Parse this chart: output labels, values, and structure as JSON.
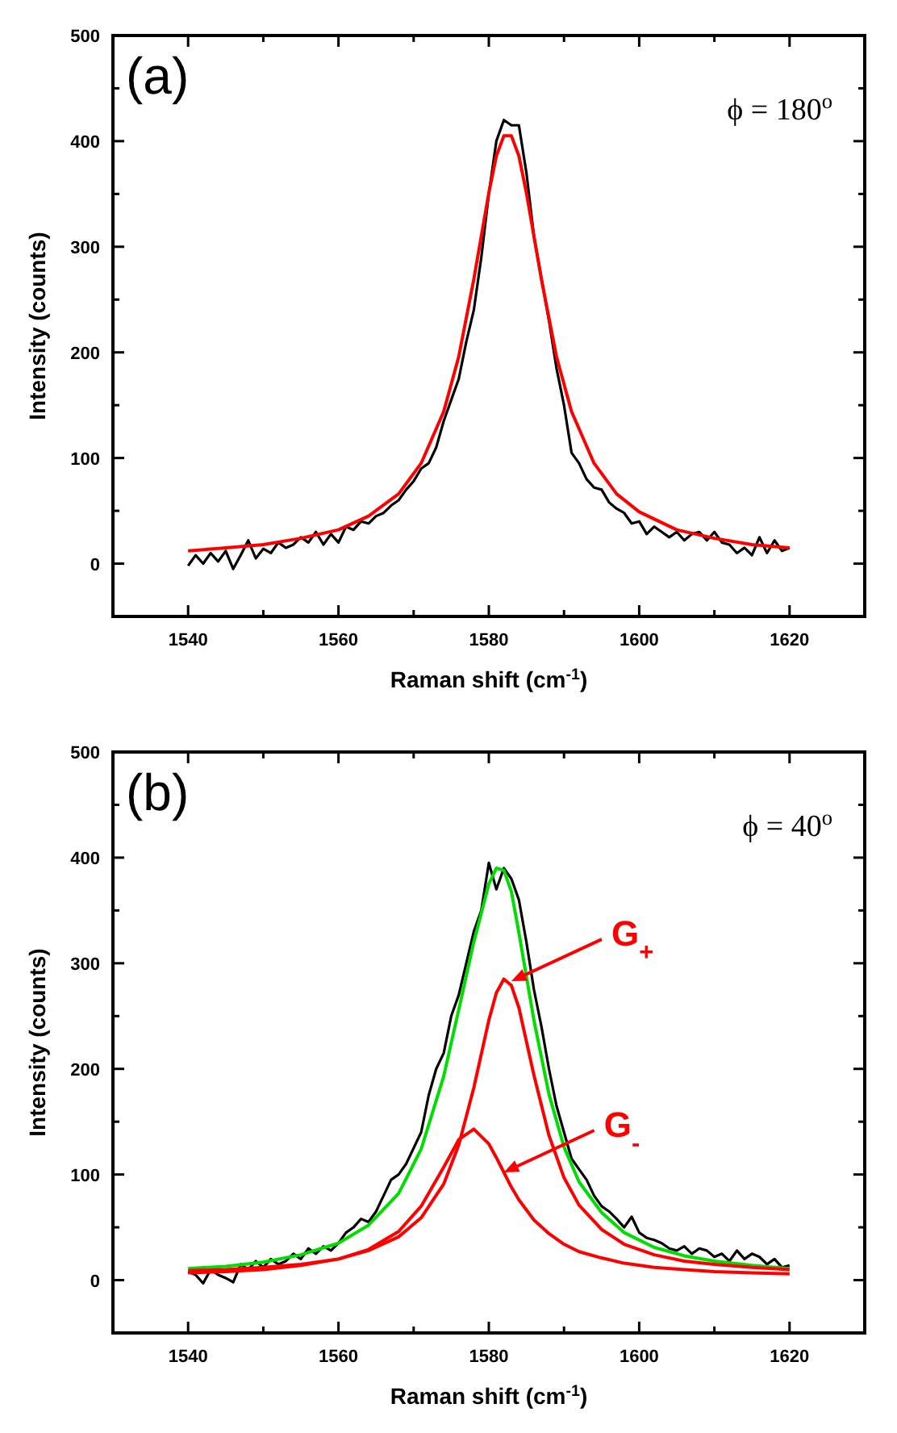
{
  "chart_data": [
    {
      "type": "line",
      "xlabel": "Raman shift (cm$^{-1}$)",
      "ylabel": "Intensity (counts)",
      "annotations": [
        "(a)",
        "ϕ = 180$^{o}$"
      ],
      "xlim": [
        1530,
        1630
      ],
      "ylim": [
        -50,
        500
      ],
      "xticks": [
        1540,
        {
          "value": 1550,
          "label": null
        },
        1560,
        {
          "value": 1570,
          "label": null
        },
        1580,
        {
          "value": 1590,
          "label": null
        },
        1600,
        {
          "value": 1610,
          "label": null
        },
        1620
      ],
      "yticks": [
        0,
        {
          "value": 50,
          "label": null
        },
        100,
        {
          "value": 150,
          "label": null
        },
        200,
        {
          "value": 250,
          "label": null
        },
        300,
        {
          "value": 350,
          "label": null
        },
        400,
        {
          "value": 450,
          "label": null
        },
        500
      ],
      "grid": false,
      "marker": "none",
      "line_style": "solid",
      "x": [
        1540,
        1541,
        1542,
        1543,
        1544,
        1545,
        1546,
        1547,
        1548,
        1549,
        1550,
        1551,
        1552,
        1553,
        1554,
        1555,
        1556,
        1557,
        1558,
        1559,
        1560,
        1561,
        1562,
        1563,
        1564,
        1565,
        1566,
        1567,
        1568,
        1569,
        1570,
        1571,
        1572,
        1573,
        1574,
        1575,
        1576,
        1577,
        1578,
        1579,
        1580,
        1581,
        1582,
        1583,
        1584,
        1585,
        1586,
        1587,
        1588,
        1589,
        1590,
        1591,
        1592,
        1593,
        1594,
        1595,
        1596,
        1597,
        1598,
        1599,
        1600,
        1601,
        1602,
        1603,
        1604,
        1605,
        1606,
        1607,
        1608,
        1609,
        1610,
        1611,
        1612,
        1613,
        1614,
        1615,
        1616,
        1617,
        1618,
        1619,
        1620
      ],
      "series": [
        {
          "color": "#000000",
          "values": [
            -2,
            8,
            0,
            10,
            2,
            12,
            -5,
            8,
            22,
            5,
            14,
            10,
            20,
            15,
            18,
            25,
            20,
            30,
            18,
            28,
            20,
            35,
            32,
            40,
            38,
            45,
            48,
            55,
            60,
            70,
            78,
            90,
            95,
            110,
            135,
            155,
            175,
            210,
            240,
            290,
            350,
            400,
            420,
            415,
            415,
            370,
            310,
            270,
            230,
            185,
            150,
            105,
            95,
            80,
            72,
            70,
            58,
            52,
            48,
            38,
            40,
            28,
            35,
            30,
            25,
            30,
            22,
            28,
            30,
            22,
            30,
            20,
            18,
            10,
            15,
            8,
            25,
            10,
            22,
            12,
            15
          ]
        },
        {
          "color": "#ff0000",
          "x": [
            1540,
            1545,
            1550,
            1555,
            1560,
            1564,
            1568,
            1571,
            1574,
            1576,
            1578,
            1580,
            1581,
            1582,
            1583,
            1584,
            1585,
            1587,
            1589,
            1591,
            1594,
            1597,
            1600,
            1605,
            1610,
            1615,
            1620
          ],
          "values": [
            12,
            15,
            18,
            24,
            32,
            45,
            66,
            95,
            144,
            196,
            269,
            351,
            386,
            405,
            405,
            386,
            351,
            269,
            196,
            144,
            95,
            66,
            49,
            32,
            24,
            18,
            15
          ]
        }
      ]
    },
    {
      "type": "line",
      "xlabel": "Raman shift (cm$^{-1}$)",
      "ylabel": "Intensity (counts)",
      "annotations": [
        "(b)",
        "ϕ = 40$^{o}$",
        {
          "text": "G$_{+}$",
          "x": 1583,
          "y": 283
        },
        {
          "text": "G$_{-}$",
          "x": 1582,
          "y": 102
        }
      ],
      "xlim": [
        1530,
        1630
      ],
      "ylim": [
        -50,
        500
      ],
      "xticks": [
        1540,
        {
          "value": 1550,
          "label": null
        },
        1560,
        {
          "value": 1570,
          "label": null
        },
        1580,
        {
          "value": 1590,
          "label": null
        },
        1600,
        {
          "value": 1610,
          "label": null
        },
        1620
      ],
      "yticks": [
        0,
        {
          "value": 50,
          "label": null
        },
        100,
        {
          "value": 150,
          "label": null
        },
        200,
        {
          "value": 250,
          "label": null
        },
        300,
        {
          "value": 350,
          "label": null
        },
        400,
        {
          "value": 450,
          "label": null
        },
        500
      ],
      "grid": false,
      "marker": "none",
      "line_style": "solid",
      "x": [
        1540,
        1541,
        1542,
        1543,
        1544,
        1545,
        1546,
        1547,
        1548,
        1549,
        1550,
        1551,
        1552,
        1553,
        1554,
        1555,
        1556,
        1557,
        1558,
        1559,
        1560,
        1561,
        1562,
        1563,
        1564,
        1565,
        1566,
        1567,
        1568,
        1569,
        1570,
        1571,
        1572,
        1573,
        1574,
        1575,
        1576,
        1577,
        1578,
        1579,
        1580,
        1581,
        1582,
        1583,
        1584,
        1585,
        1586,
        1587,
        1588,
        1589,
        1590,
        1591,
        1592,
        1593,
        1594,
        1595,
        1596,
        1597,
        1598,
        1599,
        1600,
        1601,
        1602,
        1603,
        1604,
        1605,
        1606,
        1607,
        1608,
        1609,
        1610,
        1611,
        1612,
        1613,
        1614,
        1615,
        1616,
        1617,
        1618,
        1619,
        1620
      ],
      "series": [
        {
          "color": "#000000",
          "values": [
            8,
            5,
            -3,
            10,
            5,
            2,
            -2,
            15,
            10,
            18,
            12,
            20,
            15,
            18,
            25,
            20,
            30,
            25,
            32,
            28,
            35,
            45,
            50,
            58,
            55,
            65,
            80,
            95,
            100,
            110,
            125,
            140,
            175,
            200,
            215,
            250,
            270,
            300,
            330,
            350,
            395,
            370,
            390,
            380,
            360,
            320,
            275,
            240,
            200,
            165,
            140,
            115,
            105,
            95,
            80,
            70,
            65,
            58,
            50,
            60,
            45,
            40,
            38,
            35,
            30,
            28,
            32,
            25,
            30,
            28,
            22,
            25,
            18,
            28,
            20,
            25,
            22,
            15,
            20,
            12,
            14
          ]
        },
        {
          "color": "#00dd00",
          "x": [
            1540,
            1545,
            1550,
            1555,
            1560,
            1564,
            1568,
            1571,
            1574,
            1576,
            1578,
            1580,
            1581,
            1582,
            1583,
            1584,
            1586,
            1588,
            1590,
            1592,
            1595,
            1598,
            1602,
            1606,
            1610,
            1615,
            1620
          ],
          "values": [
            11,
            13,
            17,
            24,
            35,
            52,
            82,
            124,
            193,
            256,
            320,
            375,
            390,
            388,
            368,
            329,
            246,
            176,
            126,
            93,
            64,
            45,
            31,
            23,
            18,
            14,
            11
          ]
        },
        {
          "color": "#ff0000",
          "x": [
            1540,
            1545,
            1550,
            1555,
            1560,
            1564,
            1568,
            1571,
            1574,
            1576,
            1578,
            1580,
            1581,
            1582,
            1583,
            1584,
            1586,
            1588,
            1590,
            1592,
            1595,
            1598,
            1602,
            1606,
            1610,
            1615,
            1620
          ],
          "values": [
            9,
            10,
            12,
            15,
            20,
            28,
            41,
            59,
            91,
            128,
            182,
            246,
            272,
            285,
            279,
            258,
            194,
            137,
            97,
            71,
            48,
            34,
            24,
            18,
            15,
            12,
            10
          ]
        },
        {
          "color": "#ff0000",
          "x": [
            1540,
            1545,
            1550,
            1555,
            1560,
            1564,
            1568,
            1571,
            1574,
            1576,
            1578,
            1580,
            1581,
            1582,
            1583,
            1584,
            1586,
            1588,
            1590,
            1592,
            1595,
            1598,
            1602,
            1606,
            1610,
            1615,
            1620
          ],
          "values": [
            7,
            8,
            10,
            14,
            20,
            29,
            46,
            70,
            107,
            133,
            143,
            129,
            116,
            102,
            88,
            76,
            57,
            44,
            34,
            27,
            21,
            16,
            12,
            10,
            8,
            7,
            6
          ]
        }
      ]
    }
  ]
}
